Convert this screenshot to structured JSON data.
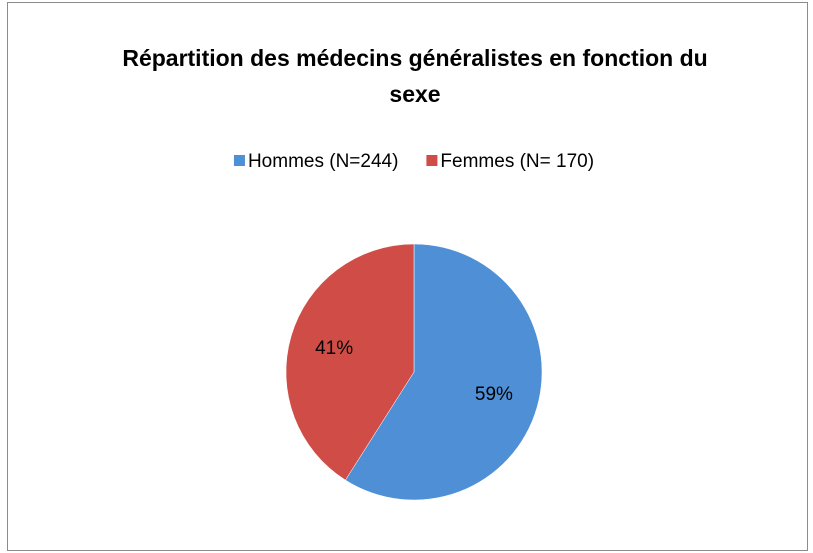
{
  "chart_data": {
    "type": "pie",
    "title": "Répartition des médecins généralistes en fonction du sexe",
    "categories": [
      "Hommes (N=244)",
      "Femmes (N= 170)"
    ],
    "values": [
      59,
      41
    ],
    "value_labels": [
      "59%",
      "41%"
    ],
    "colors": [
      "#4f8fd6",
      "#d04d47"
    ],
    "legend": "top"
  }
}
